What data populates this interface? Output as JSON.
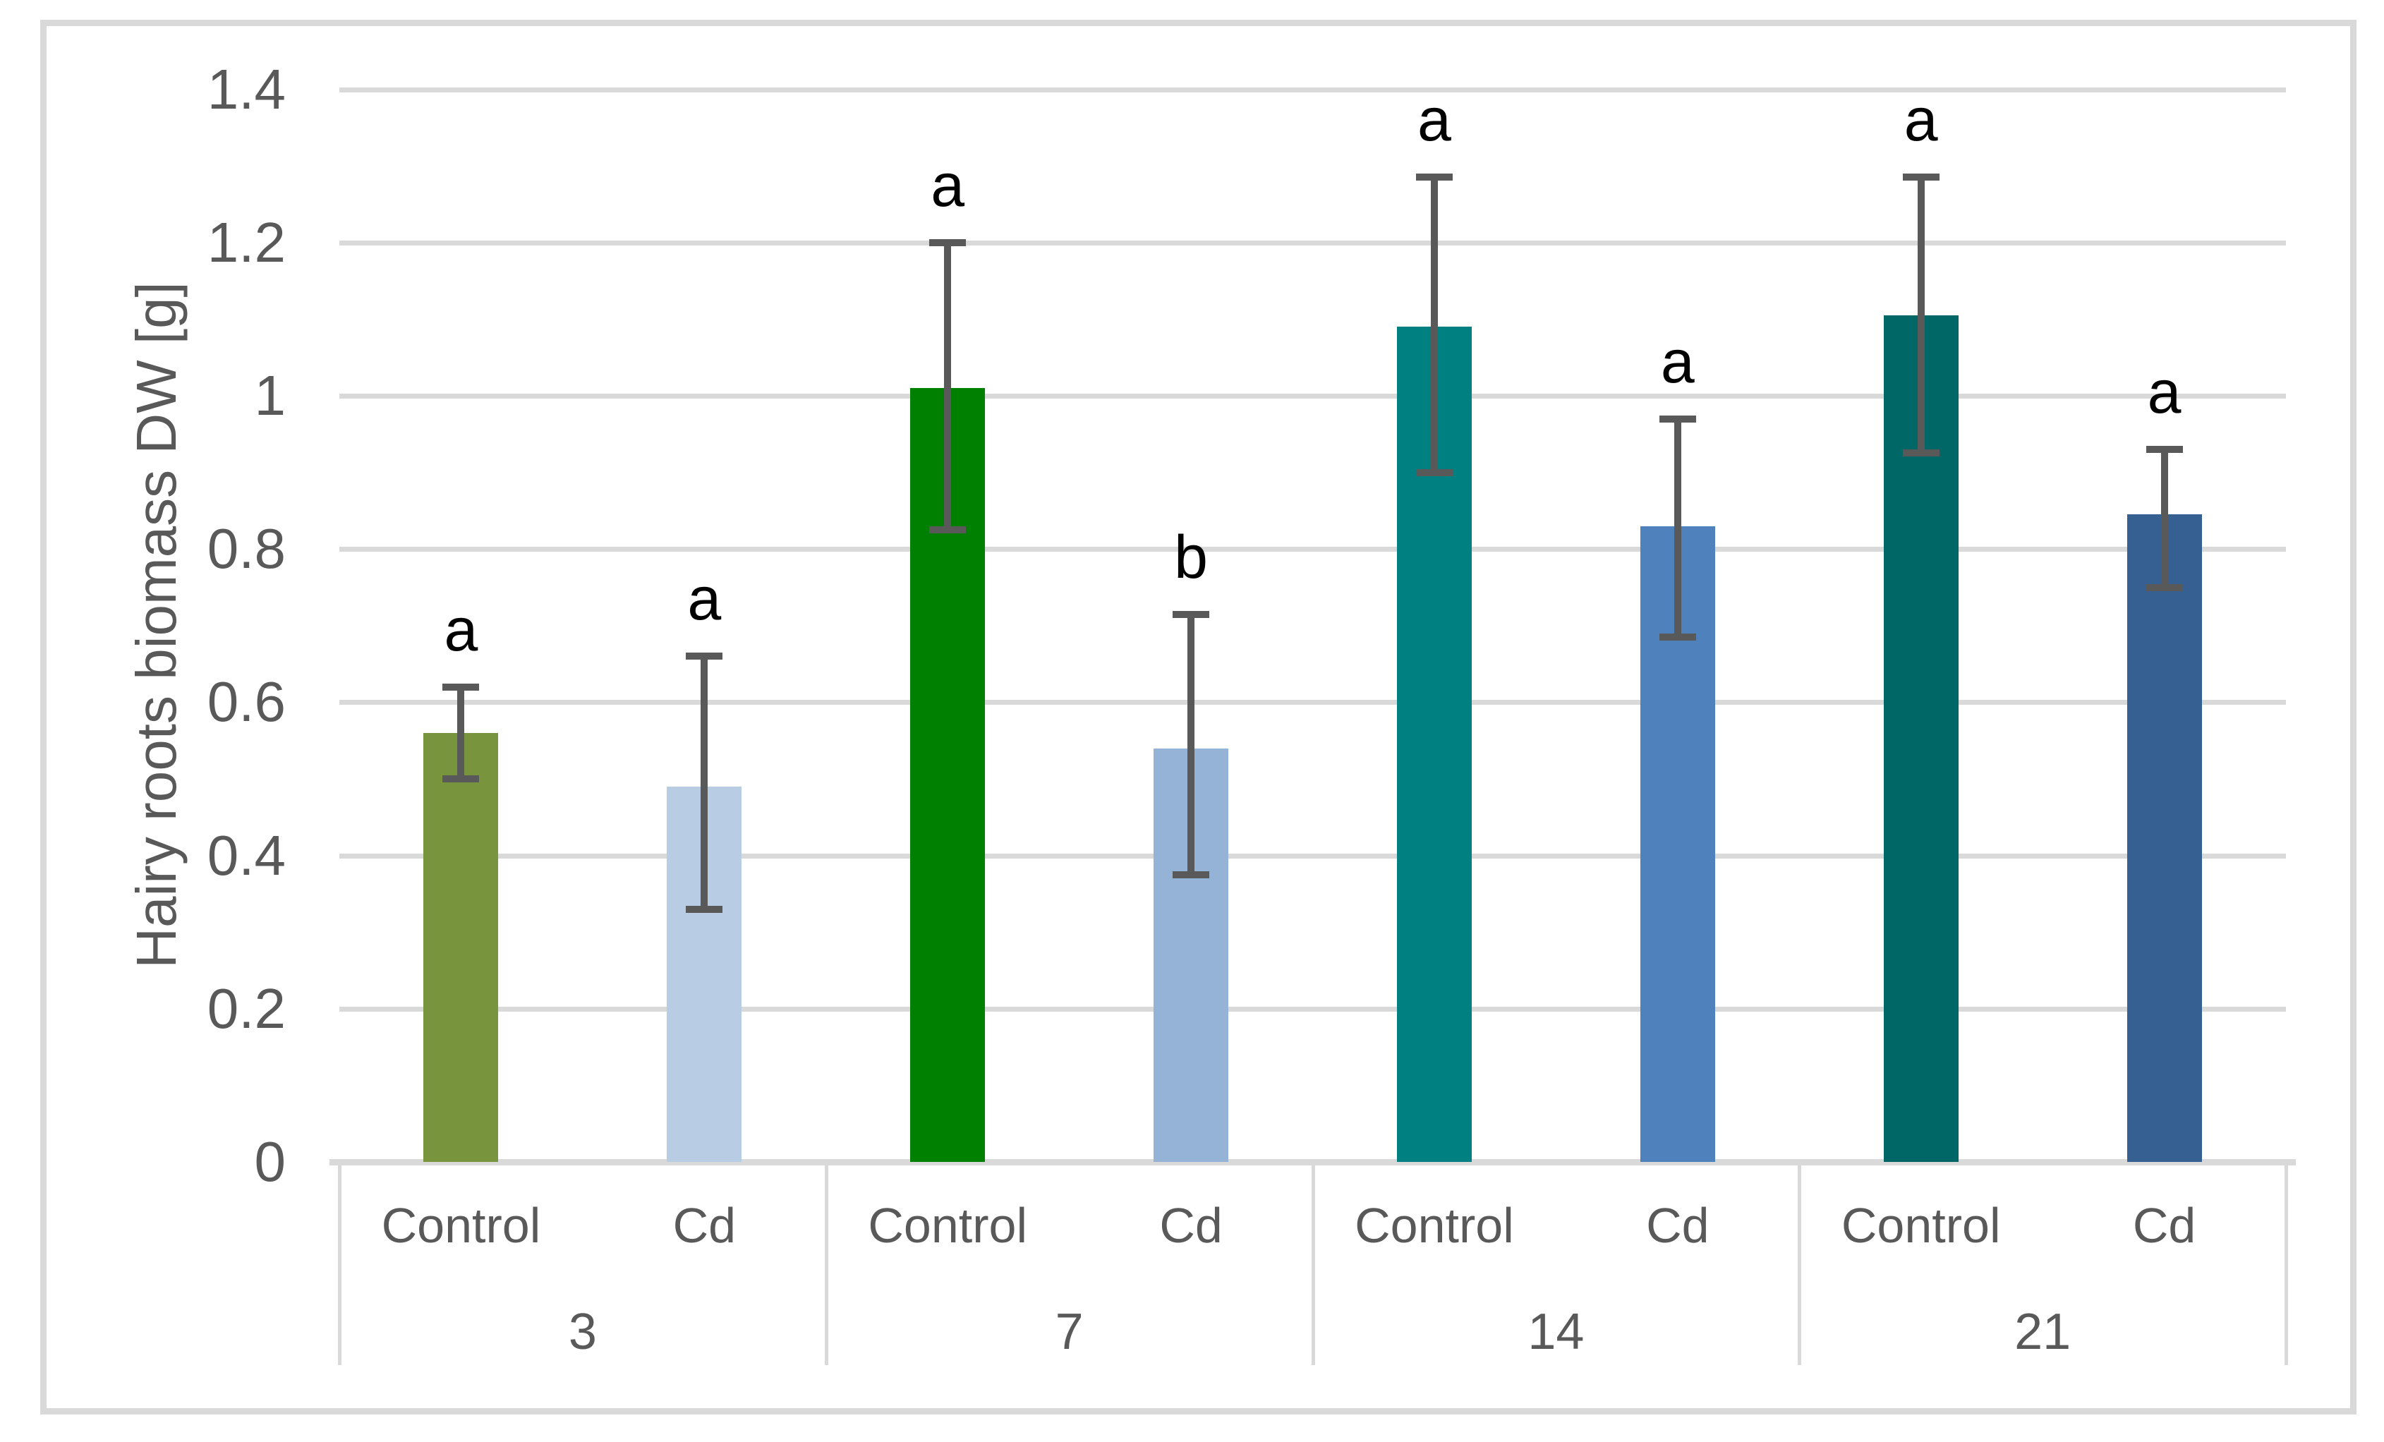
{
  "figure": {
    "frame_color": "#D9D9D9",
    "background": "#FFFFFF"
  },
  "chart_data": {
    "type": "bar",
    "title": "",
    "xlabel": "",
    "ylabel": "Hairy roots biomass DW [g]",
    "ylim": [
      0,
      1.4
    ],
    "ytick_interval": 0.2,
    "ytick_labels": [
      "0",
      "0.2",
      "0.4",
      "0.6",
      "0.8",
      "1",
      "1.2",
      "1.4"
    ],
    "grid": true,
    "legend_position": "none",
    "x_axis_levels": [
      "treatment",
      "day"
    ],
    "categories": [
      "3",
      "7",
      "14",
      "21"
    ],
    "series_labels": [
      "Control",
      "Cd"
    ],
    "groups": [
      {
        "day": "3",
        "bars": [
          {
            "label": "Control",
            "value": 0.56,
            "error_low": 0.5,
            "error_high": 0.62,
            "sig_letter": "a",
            "color": "#78953E"
          },
          {
            "label": "Cd",
            "value": 0.49,
            "error_low": 0.33,
            "error_high": 0.66,
            "sig_letter": "a",
            "color": "#B8CCE4"
          }
        ]
      },
      {
        "day": "7",
        "bars": [
          {
            "label": "Control",
            "value": 1.01,
            "error_low": 0.825,
            "error_high": 1.2,
            "sig_letter": "a",
            "color": "#008000"
          },
          {
            "label": "Cd",
            "value": 0.54,
            "error_low": 0.375,
            "error_high": 0.715,
            "sig_letter": "b",
            "color": "#95B3D7"
          }
        ]
      },
      {
        "day": "14",
        "bars": [
          {
            "label": "Control",
            "value": 1.09,
            "error_low": 0.9,
            "error_high": 1.285,
            "sig_letter": "a",
            "color": "#008080"
          },
          {
            "label": "Cd",
            "value": 0.83,
            "error_low": 0.685,
            "error_high": 0.97,
            "sig_letter": "a",
            "color": "#4F81BD"
          }
        ]
      },
      {
        "day": "21",
        "bars": [
          {
            "label": "Control",
            "value": 1.105,
            "error_low": 0.925,
            "error_high": 1.285,
            "sig_letter": "a",
            "color": "#006666"
          },
          {
            "label": "Cd",
            "value": 0.845,
            "error_low": 0.75,
            "error_high": 0.93,
            "sig_letter": "a",
            "color": "#376092"
          }
        ]
      }
    ],
    "colors": {
      "error_bar": "#595959",
      "gridline": "#D9D9D9",
      "axis_line": "#D9D9D9",
      "tick_label": "#595959",
      "axis_title": "#595959",
      "sig_letter": "#000000"
    }
  }
}
